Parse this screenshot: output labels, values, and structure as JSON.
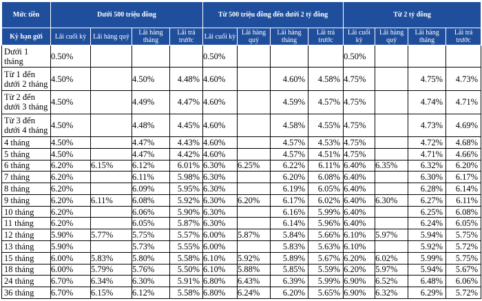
{
  "table": {
    "corner_top": "Mức tiền",
    "corner_bottom": "Kỳ hạn gửi",
    "groups": [
      {
        "label": "Dưới 500 triệu đồng"
      },
      {
        "label": "Từ 500 triệu đồng đến dưới 2 tỷ đồng"
      },
      {
        "label": "Từ 2 tỷ đồng"
      }
    ],
    "subheaders": [
      "Lãi cuối kỳ",
      "Lãi hàng quý",
      "Lãi hàng tháng",
      "Lãi trả trước"
    ],
    "rows": [
      {
        "term": "Dưới 1 tháng",
        "values": [
          "0.50%",
          "",
          "",
          "",
          "0.50%",
          "",
          "",
          "",
          "0.50%",
          "",
          "",
          ""
        ]
      },
      {
        "term": "Từ 1 đến dưới 2 tháng",
        "values": [
          "4.50%",
          "",
          "4.50%",
          "4.48%",
          "4.60%",
          "",
          "4.60%",
          "4.58%",
          "4.75%",
          "",
          "4.75%",
          "4.73%"
        ]
      },
      {
        "term": "Từ 2 đến dưới 3 tháng",
        "values": [
          "4.50%",
          "",
          "4.49%",
          "4.47%",
          "4.60%",
          "",
          "4.59%",
          "4.57%",
          "4.75%",
          "",
          "4.74%",
          "4.71%"
        ]
      },
      {
        "term": "Từ 3 đến dưới 4 tháng",
        "values": [
          "4.50%",
          "",
          "4.48%",
          "4.45%",
          "4.60%",
          "",
          "4.58%",
          "4.55%",
          "4.75%",
          "",
          "4.73%",
          "4.69%"
        ]
      },
      {
        "term": "4 tháng",
        "values": [
          "4.50%",
          "",
          "4.47%",
          "4.43%",
          "4.60%",
          "",
          "4.57%",
          "4.53%",
          "4.75%",
          "",
          "4.72%",
          "4.68%"
        ]
      },
      {
        "term": "5 tháng",
        "values": [
          "4.50%",
          "",
          "4.47%",
          "4.42%",
          "4.60%",
          "",
          "4.57%",
          "4.51%",
          "4.75%",
          "",
          "4.71%",
          "4.66%"
        ]
      },
      {
        "term": "6 tháng",
        "values": [
          "6.20%",
          "6.15%",
          "6.12%",
          "6.01%",
          "6.30%",
          "6.25%",
          "6.22%",
          "6.11%",
          "6.40%",
          "6.35%",
          "6.32%",
          "6.20%"
        ]
      },
      {
        "term": "7 tháng",
        "values": [
          "6.20%",
          "",
          "6.11%",
          "5.98%",
          "6.30%",
          "",
          "6.20%",
          "6.08%",
          "6.40%",
          "",
          "6.30%",
          "6.17%"
        ]
      },
      {
        "term": "8 tháng",
        "values": [
          "6.20%",
          "",
          "6.09%",
          "5.95%",
          "6.30%",
          "",
          "6.19%",
          "6.05%",
          "6.40%",
          "",
          "6.28%",
          "6.14%"
        ]
      },
      {
        "term": "9 tháng",
        "values": [
          "6.20%",
          "6.11%",
          "6.08%",
          "5.92%",
          "6.30%",
          "6.20%",
          "6.17%",
          "6.02%",
          "6.40%",
          "6.30%",
          "6.27%",
          "6.11%"
        ]
      },
      {
        "term": "10 tháng",
        "values": [
          "6.20%",
          "",
          "6.06%",
          "5.90%",
          "6.30%",
          "",
          "6.16%",
          "5.99%",
          "6.40%",
          "",
          "6.25%",
          "6.08%"
        ]
      },
      {
        "term": "11 tháng",
        "values": [
          "6.20%",
          "",
          "6.05%",
          "5.87%",
          "6.30%",
          "",
          "6.14%",
          "5.96%",
          "6.40%",
          "",
          "6.24%",
          "6.05%"
        ]
      },
      {
        "term": "12 tháng",
        "values": [
          "5.90%",
          "5.77%",
          "5.75%",
          "5.57%",
          "6.00%",
          "5.87%",
          "5.84%",
          "5.66%",
          "6.10%",
          "5.97%",
          "5.94%",
          "5.75%"
        ]
      },
      {
        "term": "13 tháng",
        "values": [
          "5.90%",
          "",
          "5.73%",
          "5.55%",
          "6.00%",
          "",
          "5.83%",
          "5.63%",
          "6.10%",
          "",
          "5.92%",
          "5.72%"
        ]
      },
      {
        "term": "15 tháng",
        "values": [
          "6.00%",
          "5.83%",
          "5.80%",
          "5.58%",
          "6.10%",
          "5.92%",
          "5.89%",
          "5.67%",
          "6.20%",
          "6.02%",
          "5.99%",
          "5.75%"
        ]
      },
      {
        "term": "18 tháng",
        "values": [
          "6.00%",
          "5.79%",
          "5.76%",
          "5.50%",
          "6.10%",
          "5.88%",
          "5.85%",
          "5.59%",
          "6.20%",
          "5.97%",
          "5.94%",
          "5.67%"
        ]
      },
      {
        "term": "24 tháng",
        "values": [
          "6.70%",
          "6.34%",
          "6.30%",
          "5.91%",
          "6.80%",
          "6.43%",
          "6.39%",
          "5.99%",
          "6.90%",
          "6.52%",
          "6.48%",
          "6.06%"
        ]
      },
      {
        "term": "36 tháng",
        "values": [
          "6.70%",
          "6.15%",
          "6.12%",
          "5.58%",
          "6.80%",
          "6.24%",
          "6.20%",
          "5.65%",
          "6.90%",
          "6.32%",
          "6.29%",
          "5.72%"
        ]
      }
    ]
  }
}
